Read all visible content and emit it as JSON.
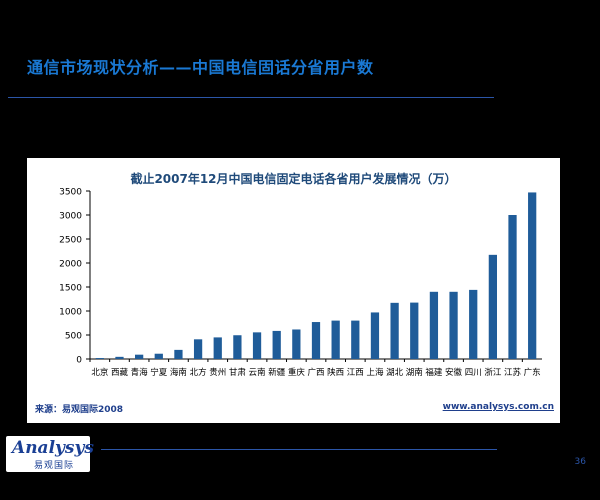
{
  "slide": {
    "title": "通信市场现状分析——中国电信固话分省用户数",
    "source": "来源：易观国际2008",
    "website": "www.analysys.com.cn",
    "page_number": "36",
    "logo_word": "Analysys",
    "logo_sub": "易观国际"
  },
  "colors": {
    "bar": "#1f5c99",
    "title": "#1a79d4",
    "rule": "#2b55a8"
  },
  "chart_data": {
    "type": "bar",
    "title": "截止2007年12月中国电信固定电话各省用户发展情况（万）",
    "categories": [
      "北京",
      "西藏",
      "青海",
      "宁夏",
      "海南",
      "北方",
      "贵州",
      "甘肃",
      "云南",
      "新疆",
      "重庆",
      "广西",
      "陕西",
      "江西",
      "上海",
      "湖北",
      "湖南",
      "福建",
      "安徽",
      "四川",
      "浙江",
      "江苏",
      "广东"
    ],
    "values": [
      20,
      45,
      90,
      110,
      190,
      410,
      450,
      495,
      555,
      585,
      615,
      770,
      800,
      800,
      970,
      1170,
      1175,
      1400,
      1400,
      1440,
      2170,
      3000,
      3470
    ],
    "ylim": [
      0,
      3500
    ],
    "yticks": [
      "0",
      "500",
      "1000",
      "1500",
      "2000",
      "2500",
      "3000",
      "3500"
    ],
    "grid": false,
    "legend": "none"
  }
}
